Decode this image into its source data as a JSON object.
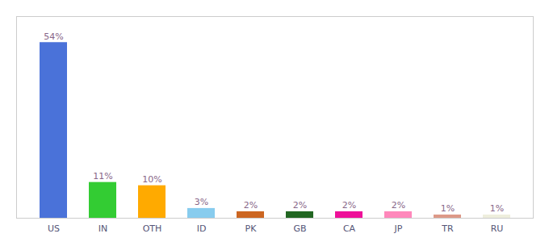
{
  "chart_data": {
    "type": "bar",
    "categories": [
      "US",
      "IN",
      "OTH",
      "ID",
      "PK",
      "GB",
      "CA",
      "JP",
      "TR",
      "RU"
    ],
    "values": [
      54,
      11,
      10,
      3,
      2,
      2,
      2,
      2,
      1,
      1
    ],
    "value_labels": [
      "54%",
      "11%",
      "10%",
      "3%",
      "2%",
      "2%",
      "2%",
      "2%",
      "1%",
      "1%"
    ],
    "colors": [
      "#4a72d9",
      "#33cc33",
      "#ffaa00",
      "#88ccee",
      "#cc6622",
      "#226622",
      "#ee1199",
      "#ff88bb",
      "#dd9988",
      "#eeeedd"
    ],
    "ylim": [
      0,
      62
    ],
    "data_labels": true,
    "tick_labels": "x",
    "grid": false
  }
}
